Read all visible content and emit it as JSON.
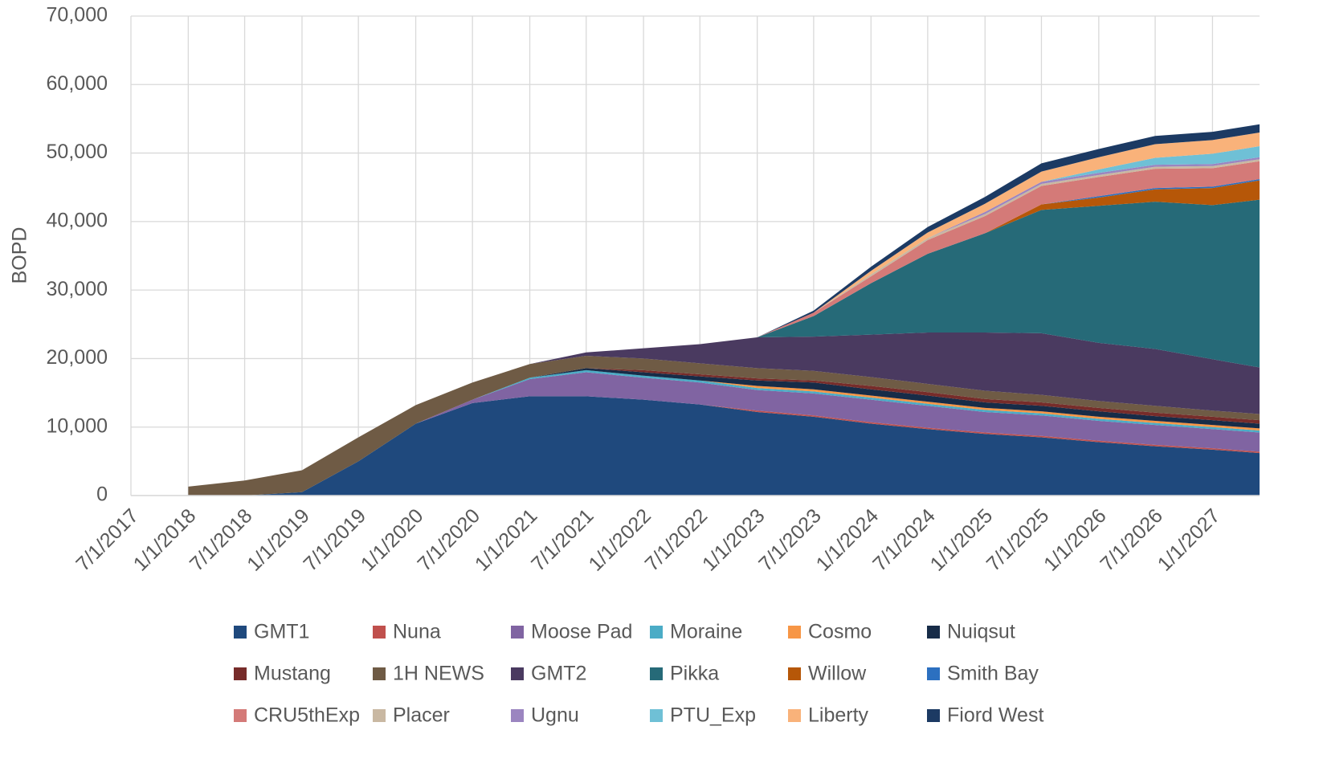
{
  "chart_data": {
    "type": "stacked_area",
    "y_label": "BOPD",
    "x": [
      "1/1/2018",
      "7/1/2018",
      "1/1/2019",
      "7/1/2019",
      "1/1/2020",
      "7/1/2020",
      "1/1/2021",
      "7/1/2021",
      "1/1/2022",
      "7/1/2022",
      "1/1/2023",
      "7/1/2023",
      "1/1/2024",
      "7/1/2024",
      "1/1/2025",
      "7/1/2025",
      "1/1/2026",
      "7/1/2026",
      "1/1/2027",
      "6/1/2027"
    ],
    "xlim": [
      "7/1/2017",
      "6/1/2027"
    ],
    "xticks": [
      "7/1/2017",
      "1/1/2018",
      "7/1/2018",
      "1/1/2019",
      "7/1/2019",
      "1/1/2020",
      "7/1/2020",
      "1/1/2021",
      "7/1/2021",
      "1/1/2022",
      "7/1/2022",
      "1/1/2023",
      "7/1/2023",
      "1/1/2024",
      "7/1/2024",
      "1/1/2025",
      "7/1/2025",
      "1/1/2026",
      "7/1/2026",
      "1/1/2027"
    ],
    "ylim": [
      0,
      70000
    ],
    "yticks": [
      0,
      {
        "value": 10000,
        "label": "10,000"
      },
      {
        "value": 20000,
        "label": "20,000"
      },
      {
        "value": 30000,
        "label": "30,000"
      },
      {
        "value": 40000,
        "label": "40,000"
      },
      {
        "value": 50000,
        "label": "50,000"
      },
      {
        "value": 60000,
        "label": "60,000"
      },
      {
        "value": 70000,
        "label": "70,000"
      }
    ],
    "grid": true,
    "legend": "bottom",
    "series": [
      {
        "name": "GMT1",
        "color": "#1f497d",
        "values": [
          0,
          0,
          500,
          5000,
          10500,
          13500,
          14500,
          14500,
          14000,
          13300,
          12200,
          11500,
          10500,
          9700,
          9000,
          8500,
          7800,
          7200,
          6700,
          6200
        ]
      },
      {
        "name": "Nuna",
        "color": "#c0504d",
        "values": [
          0,
          0,
          0,
          0,
          0,
          0,
          0,
          0,
          0,
          0,
          200,
          200,
          200,
          200,
          200,
          200,
          200,
          200,
          200,
          200
        ]
      },
      {
        "name": "Moose Pad",
        "color": "#8064a2",
        "values": [
          0,
          0,
          0,
          0,
          0,
          500,
          2500,
          3500,
          3200,
          3200,
          3000,
          3200,
          3300,
          3200,
          3000,
          3000,
          2900,
          2900,
          2800,
          2800
        ]
      },
      {
        "name": "Moraine",
        "color": "#4bacc6",
        "values": [
          0,
          0,
          0,
          0,
          0,
          0,
          200,
          300,
          300,
          300,
          300,
          300,
          300,
          300,
          300,
          300,
          300,
          300,
          300,
          300
        ]
      },
      {
        "name": "Cosmo",
        "color": "#f79646",
        "values": [
          0,
          0,
          0,
          0,
          0,
          0,
          0,
          0,
          0,
          0,
          300,
          300,
          300,
          300,
          300,
          300,
          300,
          300,
          300,
          300
        ]
      },
      {
        "name": "Nuiqsut",
        "color": "#172c48",
        "values": [
          0,
          0,
          0,
          0,
          0,
          0,
          0,
          300,
          500,
          600,
          800,
          1000,
          900,
          900,
          800,
          800,
          800,
          700,
          700,
          700
        ]
      },
      {
        "name": "Mustang",
        "color": "#772c2a",
        "values": [
          0,
          0,
          0,
          0,
          0,
          0,
          0,
          0,
          300,
          300,
          300,
          300,
          500,
          500,
          500,
          500,
          500,
          500,
          500,
          500
        ]
      },
      {
        "name": "1H NEWS",
        "color": "#6f5b45",
        "values": [
          1300,
          2200,
          3200,
          3500,
          2700,
          2500,
          2000,
          1800,
          1700,
          1600,
          1500,
          1400,
          1300,
          1200,
          1200,
          1100,
          1000,
          1000,
          900,
          900
        ]
      },
      {
        "name": "GMT2",
        "color": "#4a3a60",
        "values": [
          0,
          0,
          0,
          0,
          0,
          0,
          0,
          500,
          1500,
          2800,
          4500,
          5000,
          6200,
          7500,
          8500,
          9000,
          8500,
          8300,
          7500,
          6800
        ]
      },
      {
        "name": "Pikka",
        "color": "#266a78",
        "values": [
          0,
          0,
          0,
          0,
          0,
          0,
          0,
          0,
          0,
          0,
          0,
          3000,
          7500,
          11500,
          14500,
          18000,
          20000,
          21500,
          22500,
          24500
        ]
      },
      {
        "name": "Willow",
        "color": "#b65708",
        "values": [
          0,
          0,
          0,
          0,
          0,
          0,
          0,
          0,
          0,
          0,
          0,
          0,
          0,
          0,
          0,
          800,
          1200,
          1800,
          2500,
          2800
        ]
      },
      {
        "name": "Smith Bay",
        "color": "#2c70c0",
        "values": [
          0,
          0,
          0,
          0,
          0,
          0,
          0,
          0,
          0,
          0,
          0,
          0,
          0,
          0,
          0,
          0,
          200,
          200,
          200,
          200
        ]
      },
      {
        "name": "CRU5thExp",
        "color": "#d47a78",
        "values": [
          0,
          0,
          0,
          0,
          0,
          0,
          0,
          0,
          0,
          0,
          0,
          500,
          1000,
          2000,
          2500,
          2700,
          2800,
          2800,
          2700,
          2600
        ]
      },
      {
        "name": "Placer",
        "color": "#c9b8a2",
        "values": [
          0,
          0,
          0,
          0,
          0,
          0,
          0,
          0,
          0,
          0,
          0,
          0,
          300,
          300,
          300,
          300,
          300,
          300,
          300,
          300
        ]
      },
      {
        "name": "Ugnu",
        "color": "#9b85c0",
        "values": [
          0,
          0,
          0,
          0,
          0,
          0,
          0,
          0,
          0,
          0,
          0,
          0,
          0,
          0,
          300,
          300,
          300,
          300,
          300,
          300
        ]
      },
      {
        "name": "PTU_Exp",
        "color": "#6fc0d6",
        "values": [
          0,
          0,
          0,
          0,
          0,
          0,
          0,
          0,
          0,
          0,
          0,
          0,
          0,
          0,
          0,
          0,
          500,
          1000,
          1500,
          1600
        ]
      },
      {
        "name": "Liberty",
        "color": "#f9b27a",
        "values": [
          0,
          0,
          0,
          0,
          0,
          0,
          0,
          0,
          0,
          0,
          0,
          0,
          500,
          800,
          1200,
          1500,
          1800,
          2000,
          2000,
          2000
        ]
      },
      {
        "name": "Fiord West",
        "color": "#1c3a63",
        "values": [
          0,
          0,
          0,
          0,
          0,
          0,
          0,
          0,
          0,
          0,
          0,
          300,
          600,
          800,
          1000,
          1200,
          1200,
          1200,
          1200,
          1200
        ]
      }
    ]
  }
}
